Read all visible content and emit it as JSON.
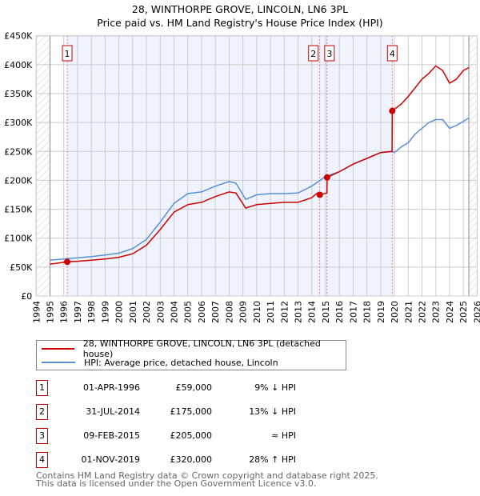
{
  "chart_data": {
    "type": "line",
    "title": "28, WINTHORPE GROVE, LINCOLN, LN6 3PL",
    "subtitle": "Price paid vs. HM Land Registry's House Price Index (HPI)",
    "xlim": [
      1994,
      2026
    ],
    "ylim": [
      0,
      450000
    ],
    "x_ticks": [
      "1994",
      "1995",
      "1996",
      "1997",
      "1998",
      "1999",
      "2000",
      "2001",
      "2002",
      "2003",
      "2004",
      "2005",
      "2006",
      "2007",
      "2008",
      "2009",
      "2010",
      "2011",
      "2012",
      "2013",
      "2014",
      "2015",
      "2016",
      "2017",
      "2018",
      "2019",
      "2020",
      "2021",
      "2022",
      "2023",
      "2024",
      "2025",
      "2026"
    ],
    "y_ticks": [
      {
        "v": 0,
        "l": "£0"
      },
      {
        "v": 50000,
        "l": "£50K"
      },
      {
        "v": 100000,
        "l": "£100K"
      },
      {
        "v": 150000,
        "l": "£150K"
      },
      {
        "v": 200000,
        "l": "£200K"
      },
      {
        "v": 250000,
        "l": "£250K"
      },
      {
        "v": 300000,
        "l": "£300K"
      },
      {
        "v": 350000,
        "l": "£350K"
      },
      {
        "v": 400000,
        "l": "£400K"
      },
      {
        "v": 450000,
        "l": "£450K"
      }
    ],
    "grid": true,
    "series": [
      {
        "name": "28, WINTHORPE GROVE, LINCOLN, LN6 3PL (detached house)",
        "color": "#cc0000",
        "x": [
          1995,
          1996.25,
          1997,
          1998,
          1999,
          2000,
          2001,
          2002,
          2003,
          2004,
          2005,
          2006,
          2007,
          2008,
          2008.5,
          2009.2,
          2010,
          2011,
          2012,
          2013,
          2014,
          2014.4,
          2014.58,
          2015.1,
          2015.11,
          2016,
          2017,
          2018,
          2019,
          2019.83,
          2019.84,
          2020.5,
          2021,
          2021.5,
          2022,
          2022.5,
          2023,
          2023.5,
          2024,
          2024.5,
          2025,
          2025.4
        ],
        "y": [
          55000,
          59000,
          60000,
          62000,
          64000,
          67000,
          73000,
          88000,
          115000,
          145000,
          158000,
          162000,
          172000,
          180000,
          178000,
          152000,
          158000,
          160000,
          162000,
          162000,
          170000,
          178000,
          175000,
          178000,
          205000,
          215000,
          228000,
          238000,
          248000,
          250000,
          320000,
          332000,
          345000,
          360000,
          375000,
          385000,
          398000,
          390000,
          368000,
          375000,
          390000,
          395000
        ]
      },
      {
        "name": "HPI: Average price, detached house, Lincoln",
        "color": "#5b8fd4",
        "x": [
          1995,
          1996,
          1997,
          1998,
          1999,
          2000,
          2001,
          2002,
          2003,
          2004,
          2005,
          2006,
          2007,
          2008,
          2008.5,
          2009.2,
          2010,
          2011,
          2012,
          2013,
          2014,
          2014.6,
          2015,
          2016,
          2017,
          2018,
          2019,
          2019.8,
          2020,
          2020.5,
          2021,
          2021.5,
          2022,
          2022.5,
          2023,
          2023.5,
          2024,
          2024.5,
          2025,
          2025.4
        ],
        "y": [
          62000,
          64000,
          66000,
          68000,
          71000,
          74000,
          82000,
          98000,
          128000,
          160000,
          177000,
          180000,
          190000,
          198000,
          195000,
          167000,
          175000,
          177000,
          177000,
          178000,
          190000,
          200000,
          207000,
          215000,
          228000,
          238000,
          248000,
          250000,
          248000,
          258000,
          265000,
          280000,
          290000,
          300000,
          305000,
          305000,
          290000,
          295000,
          302000,
          308000
        ]
      }
    ],
    "sales": [
      {
        "label": "1",
        "x": 1996.25,
        "y": 59000
      },
      {
        "label": "2",
        "x": 2014.58,
        "y": 175000
      },
      {
        "label": "3",
        "x": 2015.11,
        "y": 205000
      },
      {
        "label": "4",
        "x": 2019.84,
        "y": 320000
      }
    ]
  },
  "legend": {
    "property": "28, WINTHORPE GROVE, LINCOLN, LN6 3PL (detached house)",
    "hpi": "HPI: Average price, detached house, Lincoln"
  },
  "transactions": [
    {
      "num": "1",
      "date": "01-APR-1996",
      "price": "£59,000",
      "hpi": "9% ↓ HPI"
    },
    {
      "num": "2",
      "date": "31-JUL-2014",
      "price": "£175,000",
      "hpi": "13% ↓ HPI"
    },
    {
      "num": "3",
      "date": "09-FEB-2015",
      "price": "£205,000",
      "hpi": "≈ HPI"
    },
    {
      "num": "4",
      "date": "01-NOV-2019",
      "price": "£320,000",
      "hpi": "28% ↑ HPI"
    }
  ],
  "footer": {
    "line1": "Contains HM Land Registry data © Crown copyright and database right 2025.",
    "line2": "This data is licensed under the Open Government Licence v3.0."
  }
}
